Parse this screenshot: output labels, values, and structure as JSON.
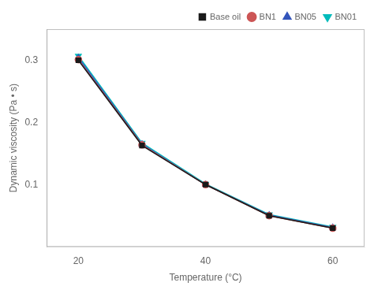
{
  "chart_data": {
    "type": "line",
    "xlabel": "Temperature (°C)",
    "ylabel": "Dynamic viscosity (Pa • s)",
    "x": [
      20,
      30,
      40,
      50,
      60
    ],
    "series": [
      {
        "name": "Base oil",
        "color": "#1a1a1a",
        "marker": "square",
        "line_style": "solid",
        "values": [
          0.3,
          0.163,
          0.1,
          0.05,
          0.03
        ]
      },
      {
        "name": "BN1",
        "color": "#cc5555",
        "marker": "circle",
        "line_style": "solid",
        "values": [
          0.301,
          0.164,
          0.1,
          0.05,
          0.03
        ]
      },
      {
        "name": "BN05",
        "color": "#3355bb",
        "marker": "triangle-up",
        "line_style": "solid",
        "values": [
          0.304,
          0.165,
          0.1,
          0.051,
          0.031
        ]
      },
      {
        "name": "BN01",
        "color": "#00bbbb",
        "marker": "triangle-down",
        "line_style": "solid",
        "values": [
          0.307,
          0.167,
          0.101,
          0.052,
          0.032
        ]
      }
    ],
    "xlim": [
      15,
      65
    ],
    "ylim": [
      0.0,
      0.35
    ],
    "xticks": [
      20,
      40,
      60
    ],
    "yticks": [
      0.1,
      0.2,
      0.3
    ],
    "grid": false,
    "legend": "upper right"
  }
}
